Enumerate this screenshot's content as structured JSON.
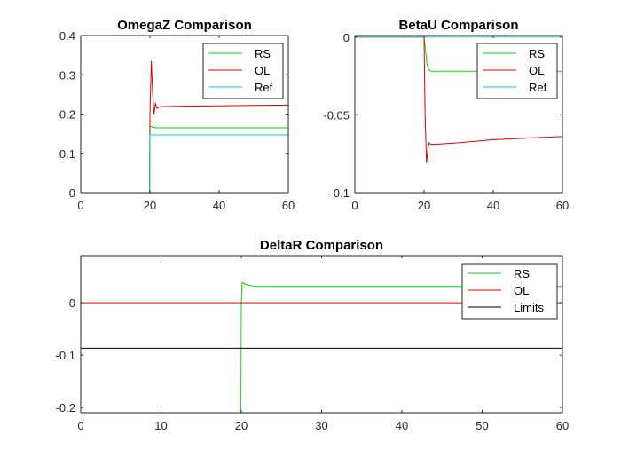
{
  "chart_data": [
    {
      "type": "line",
      "title": "OmegaZ Comparison",
      "xlabel": "",
      "ylabel": "",
      "xlim": [
        0,
        60
      ],
      "ylim": [
        0,
        0.4
      ],
      "xticks": [
        0,
        20,
        40,
        60
      ],
      "yticks": [
        0,
        0.1,
        0.2,
        0.3,
        0.4
      ],
      "xtick_labels": [
        "0",
        "20",
        "40",
        "60"
      ],
      "ytick_labels": [
        "0",
        "0.1",
        "0.2",
        "0.3",
        "0.4"
      ],
      "grid": false,
      "legend_position": "top-right",
      "series": [
        {
          "name": "RS",
          "color": "#00dd00",
          "x": [
            0,
            19.9,
            20.0,
            20.3,
            21,
            22,
            30,
            60
          ],
          "y": [
            0,
            0,
            0.17,
            0.168,
            0.166,
            0.165,
            0.165,
            0.165
          ]
        },
        {
          "name": "OL",
          "color": "#e00000",
          "x": [
            0,
            19.9,
            20.0,
            20.4,
            20.8,
            21.2,
            21.6,
            22.0,
            23,
            30,
            40,
            50,
            60
          ],
          "y": [
            0,
            0,
            0.2,
            0.335,
            0.25,
            0.2,
            0.228,
            0.215,
            0.219,
            0.22,
            0.221,
            0.222,
            0.223
          ]
        },
        {
          "name": "Ref",
          "color": "#00d0d0",
          "x": [
            0,
            19.9,
            20.0,
            60
          ],
          "y": [
            0,
            0,
            0.147,
            0.147
          ]
        }
      ]
    },
    {
      "type": "line",
      "title": "BetaU Comparison",
      "xlabel": "",
      "ylabel": "",
      "xlim": [
        0,
        60
      ],
      "ylim": [
        -0.1,
        0.001
      ],
      "xticks": [
        0,
        20,
        40,
        60
      ],
      "yticks": [
        -0.1,
        -0.05,
        0
      ],
      "xtick_labels": [
        "0",
        "20",
        "40",
        "60"
      ],
      "ytick_labels": [
        "-0.1",
        "-0.05",
        "0"
      ],
      "grid": false,
      "legend_position": "top-right",
      "series": [
        {
          "name": "RS",
          "color": "#00dd00",
          "x": [
            0,
            19.9,
            20.0,
            20.4,
            20.8,
            21.3,
            22,
            23,
            30,
            60
          ],
          "y": [
            0,
            0,
            0,
            -0.008,
            -0.017,
            -0.021,
            -0.022,
            -0.022,
            -0.022,
            -0.022
          ]
        },
        {
          "name": "OL",
          "color": "#e00000",
          "x": [
            0,
            19.9,
            20.0,
            20.3,
            20.7,
            21.1,
            21.5,
            22,
            23,
            30,
            40,
            50,
            60
          ],
          "y": [
            0,
            0,
            0,
            -0.05,
            -0.081,
            -0.072,
            -0.068,
            -0.069,
            -0.069,
            -0.068,
            -0.066,
            -0.065,
            -0.064
          ]
        },
        {
          "name": "Ref",
          "color": "#00d0d0",
          "x": [
            0,
            60
          ],
          "y": [
            0,
            0
          ]
        }
      ]
    },
    {
      "type": "line",
      "title": "DeltaR Comparison",
      "xlabel": "",
      "ylabel": "",
      "xlim": [
        0,
        60
      ],
      "ylim": [
        -0.21,
        0.09
      ],
      "xticks": [
        0,
        10,
        20,
        30,
        40,
        50,
        60
      ],
      "yticks": [
        -0.2,
        -0.1,
        0
      ],
      "xtick_labels": [
        "0",
        "10",
        "20",
        "30",
        "40",
        "50",
        "60"
      ],
      "ytick_labels": [
        "-0.2",
        "-0.1",
        "0"
      ],
      "grid": false,
      "legend_position": "top-right",
      "series": [
        {
          "name": "RS",
          "color": "#00dd00",
          "x": [
            19.95,
            20.0,
            20.1,
            20.4,
            21,
            22,
            30,
            60
          ],
          "y": [
            -0.21,
            0,
            0.038,
            0.036,
            0.033,
            0.031,
            0.031,
            0.031
          ]
        },
        {
          "name": "OL",
          "color": "#e00000",
          "x": [
            0,
            60
          ],
          "y": [
            0,
            0
          ]
        },
        {
          "name": "Limits",
          "color": "#000000",
          "x": [
            0,
            60
          ],
          "y": [
            -0.087,
            -0.087
          ]
        }
      ]
    }
  ]
}
